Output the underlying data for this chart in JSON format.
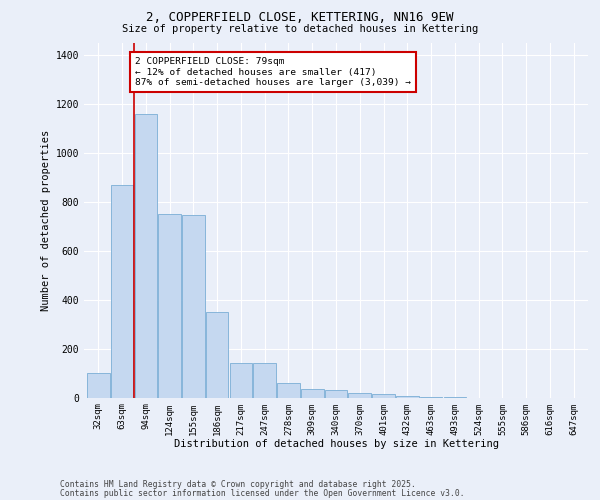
{
  "title1": "2, COPPERFIELD CLOSE, KETTERING, NN16 9EW",
  "title2": "Size of property relative to detached houses in Kettering",
  "xlabel": "Distribution of detached houses by size in Kettering",
  "ylabel": "Number of detached properties",
  "categories": [
    "32sqm",
    "63sqm",
    "94sqm",
    "124sqm",
    "155sqm",
    "186sqm",
    "217sqm",
    "247sqm",
    "278sqm",
    "309sqm",
    "340sqm",
    "370sqm",
    "401sqm",
    "432sqm",
    "463sqm",
    "493sqm",
    "524sqm",
    "555sqm",
    "586sqm",
    "616sqm",
    "647sqm"
  ],
  "values": [
    100,
    870,
    1160,
    750,
    745,
    350,
    140,
    140,
    60,
    35,
    30,
    20,
    15,
    5,
    2,
    1,
    0,
    0,
    0,
    0,
    0
  ],
  "bar_color": "#c5d8f0",
  "bar_edge_color": "#7aaed6",
  "red_line_x": 1.5,
  "annotation_text": "2 COPPERFIELD CLOSE: 79sqm\n← 12% of detached houses are smaller (417)\n87% of semi-detached houses are larger (3,039) →",
  "annotation_box_color": "#ffffff",
  "annotation_box_edge": "#cc0000",
  "background_color": "#eaeff9",
  "grid_color": "#ffffff",
  "ylim": [
    0,
    1450
  ],
  "yticks": [
    0,
    200,
    400,
    600,
    800,
    1000,
    1200,
    1400
  ],
  "footer1": "Contains HM Land Registry data © Crown copyright and database right 2025.",
  "footer2": "Contains public sector information licensed under the Open Government Licence v3.0."
}
